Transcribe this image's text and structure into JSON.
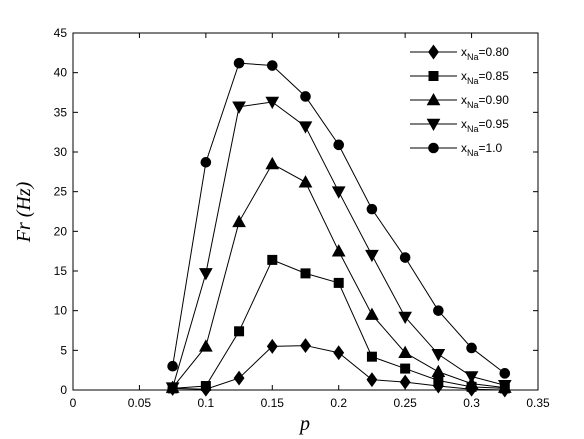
{
  "chart_data": {
    "type": "line",
    "xlabel": "p",
    "ylabel": "Fr (Hz)",
    "xlim": [
      0,
      0.35
    ],
    "ylim": [
      0,
      45
    ],
    "xticks": [
      "0",
      "0.05",
      "0.1",
      "0.15",
      "0.2",
      "0.25",
      "0.3",
      "0.35"
    ],
    "xtick_values": [
      0,
      0.05,
      0.1,
      0.15,
      0.2,
      0.25,
      0.3,
      0.35
    ],
    "yticks": [
      "0",
      "5",
      "10",
      "15",
      "20",
      "25",
      "30",
      "35",
      "40",
      "45"
    ],
    "ytick_values": [
      0,
      5,
      10,
      15,
      20,
      25,
      30,
      35,
      40,
      45
    ],
    "grid": false,
    "legend_position": "top-right",
    "series": [
      {
        "label_main": "x",
        "label_sub": "Na",
        "label_value": "=0.80",
        "marker": "diamond",
        "x": [
          0.075,
          0.1,
          0.125,
          0.15,
          0.175,
          0.2,
          0.225,
          0.25,
          0.275,
          0.3,
          0.325
        ],
        "y": [
          0.2,
          0.1,
          1.5,
          5.5,
          5.6,
          4.7,
          1.3,
          1.0,
          0.5,
          0.1,
          0.0
        ]
      },
      {
        "label_main": "x",
        "label_sub": "Na",
        "label_value": "=0.85",
        "marker": "square",
        "x": [
          0.075,
          0.1,
          0.125,
          0.15,
          0.175,
          0.2,
          0.225,
          0.25,
          0.275,
          0.3,
          0.325
        ],
        "y": [
          0.2,
          0.5,
          7.4,
          16.4,
          14.7,
          13.5,
          4.2,
          2.7,
          1.2,
          0.4,
          0.2
        ]
      },
      {
        "label_main": "x",
        "label_sub": "Na",
        "label_value": "=0.90",
        "marker": "triangle-up",
        "x": [
          0.075,
          0.1,
          0.125,
          0.15,
          0.175,
          0.2,
          0.225,
          0.25,
          0.275,
          0.3,
          0.325
        ],
        "y": [
          0.3,
          5.5,
          21.2,
          28.5,
          26.2,
          17.5,
          9.5,
          4.7,
          2.3,
          0.8,
          0.3
        ]
      },
      {
        "label_main": "x",
        "label_sub": "Na",
        "label_value": "=0.95",
        "marker": "triangle-down",
        "x": [
          0.075,
          0.1,
          0.125,
          0.15,
          0.175,
          0.2,
          0.225,
          0.25,
          0.275,
          0.3,
          0.325
        ],
        "y": [
          0.3,
          14.7,
          35.7,
          36.3,
          33.2,
          25.0,
          17.0,
          9.2,
          4.5,
          1.7,
          0.6
        ]
      },
      {
        "label_main": "x",
        "label_sub": "Na",
        "label_value": "=1.0",
        "marker": "circle",
        "x": [
          0.075,
          0.1,
          0.125,
          0.15,
          0.175,
          0.2,
          0.225,
          0.25,
          0.275,
          0.3,
          0.325
        ],
        "y": [
          3.0,
          28.7,
          41.2,
          40.9,
          37.0,
          30.9,
          22.8,
          16.7,
          10.0,
          5.3,
          2.1
        ]
      }
    ]
  }
}
